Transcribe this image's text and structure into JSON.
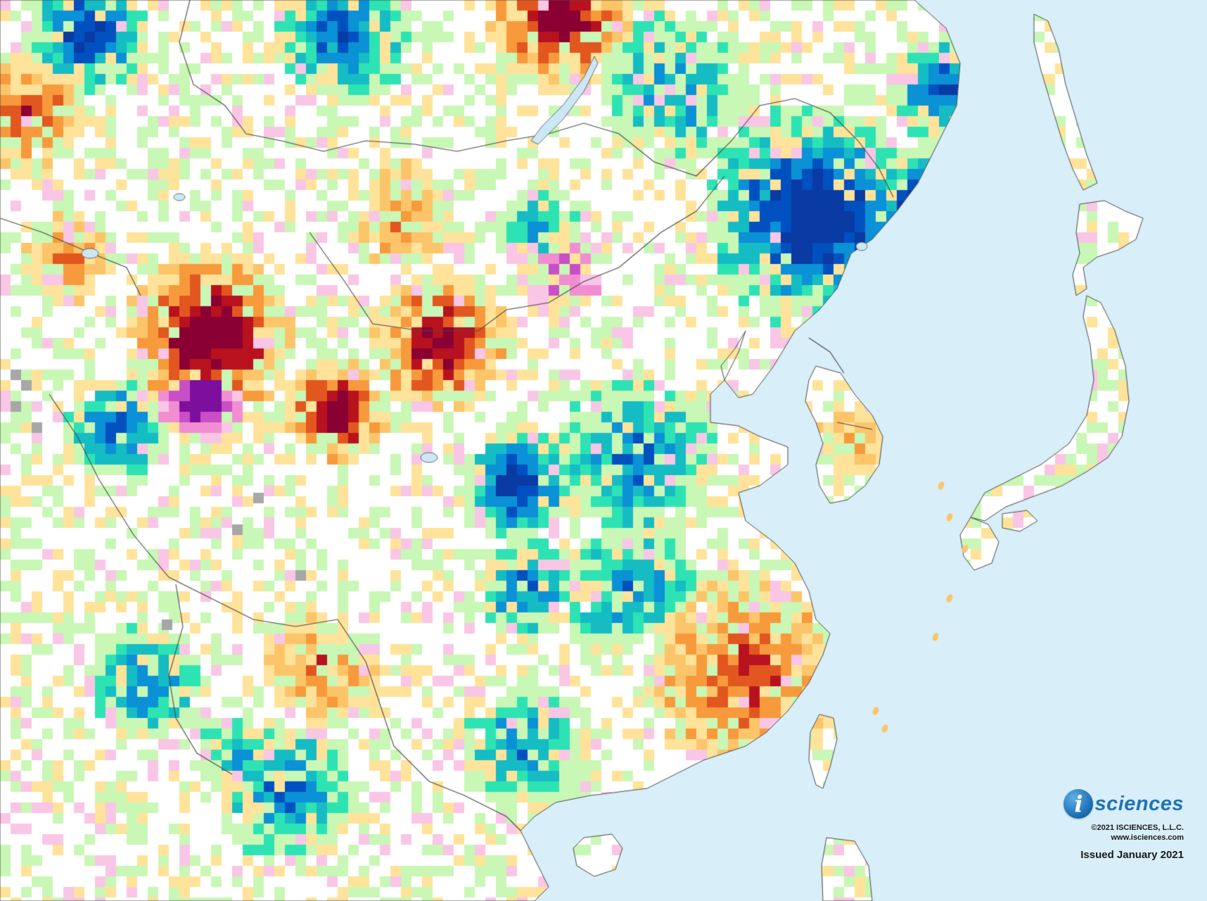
{
  "map": {
    "region": "East Asia",
    "colors": {
      "ocean": "#d8eef9",
      "land": "#ffffff",
      "border": "#4a4a4a",
      "lake": "#cde8f5",
      "surplus_scale": [
        "#c9f7b5",
        "#2ee3b3",
        "#16bcc4",
        "#0b91d6",
        "#0050c0",
        "#0a3aa3"
      ],
      "deficit_scale": [
        "#ffe39a",
        "#fcc56a",
        "#f79a3c",
        "#e2571f",
        "#b8121f",
        "#8a0033"
      ],
      "both_scale": [
        "#f9c6e6",
        "#f18ed2",
        "#c84fc8",
        "#7c0f9b"
      ],
      "ice_gray": "#a7a7a7"
    }
  },
  "branding": {
    "logo_icon": "i-globe-icon",
    "logo_letter": "i",
    "logo_text": "sciences",
    "copyright": "©2021 ISCIENCES, L.L.C.",
    "url": "www.isciences.com",
    "issued": "Issued January 2021"
  }
}
